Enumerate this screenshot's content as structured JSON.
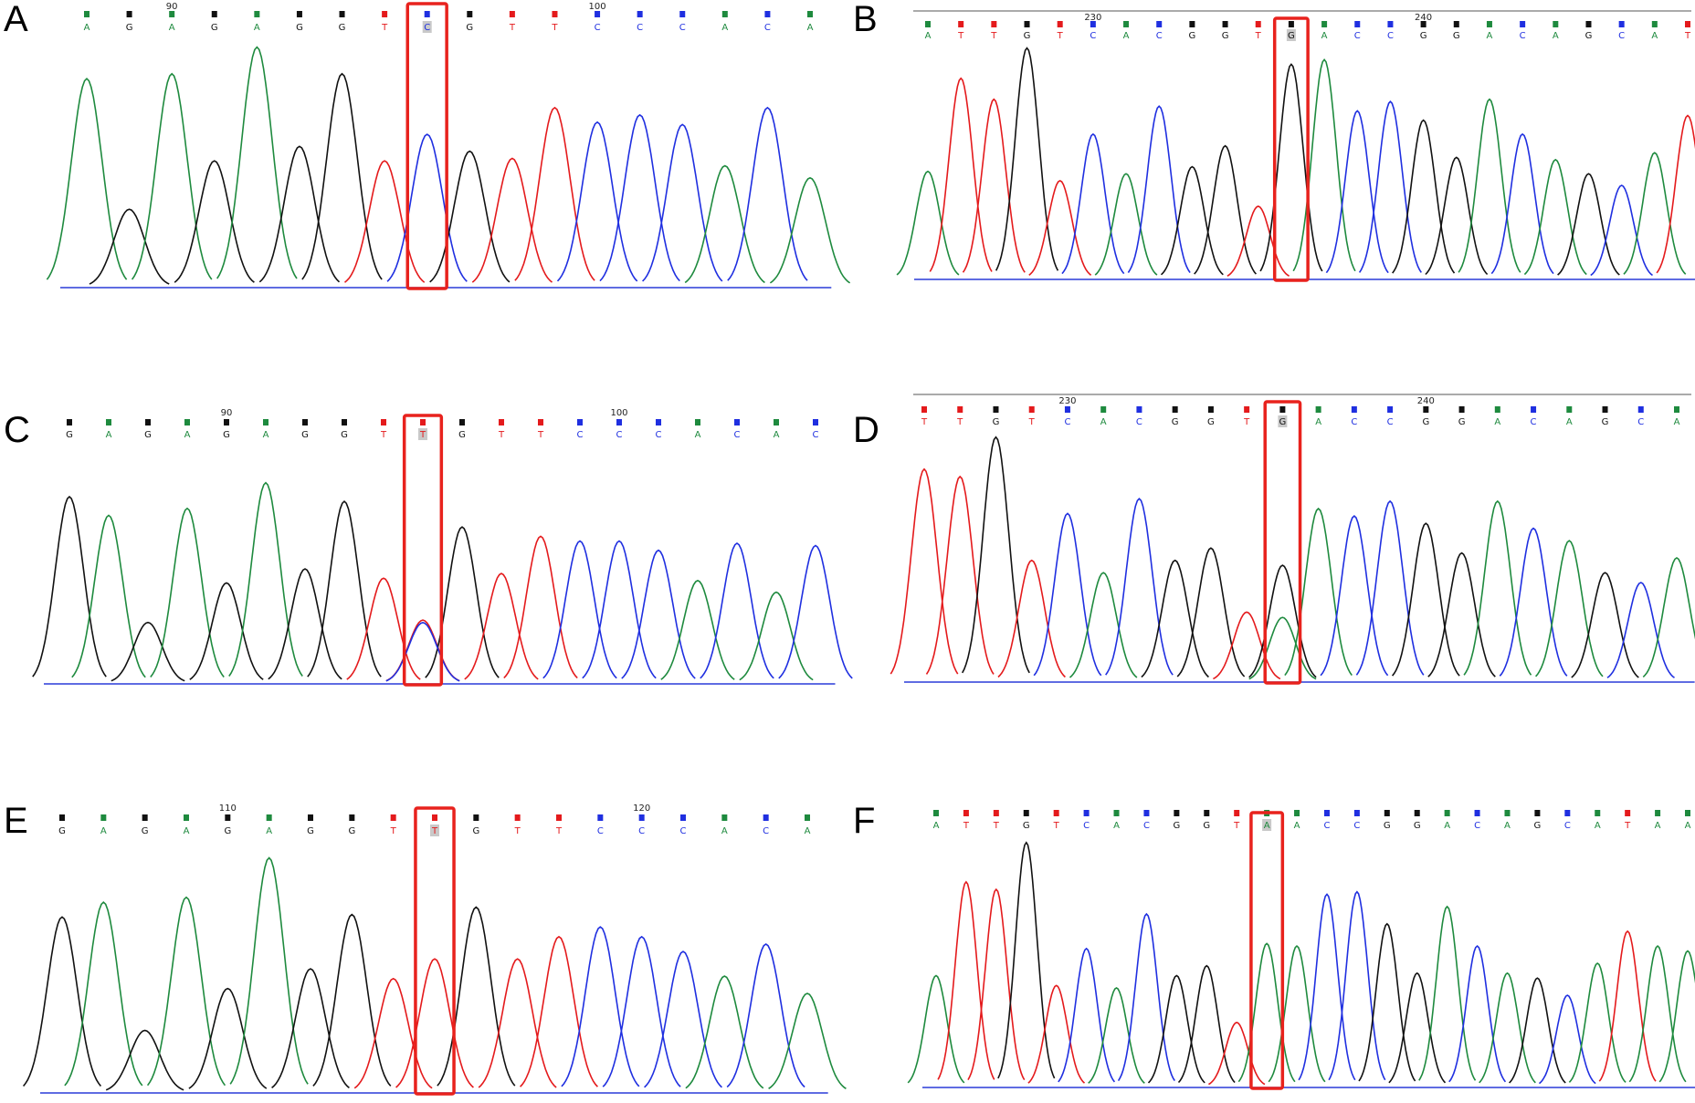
{
  "colors": {
    "A": "#1e8a3e",
    "C": "#1f2fe0",
    "G": "#111111",
    "T": "#e41a1c",
    "box": "#e8221d"
  },
  "panels": [
    {
      "letter": "A",
      "sequence": [
        "A",
        "G",
        "A",
        "G",
        "A",
        "G",
        "G",
        "T",
        "C",
        "G",
        "T",
        "T",
        "C",
        "C",
        "C",
        "A",
        "C",
        "A"
      ],
      "peaks": [
        0.86,
        0.32,
        0.88,
        0.52,
        0.99,
        0.58,
        0.88,
        0.52,
        0.63,
        0.56,
        0.53,
        0.74,
        0.68,
        0.71,
        0.67,
        0.5,
        0.74,
        0.45
      ],
      "position_labels": [
        {
          "text": "90",
          "index": 2
        },
        {
          "text": "100",
          "index": 12
        }
      ],
      "highlight_index": 8,
      "highlighted_base": "C",
      "top_rule": false
    },
    {
      "letter": "B",
      "sequence": [
        "A",
        "T",
        "T",
        "G",
        "T",
        "C",
        "A",
        "C",
        "G",
        "G",
        "T",
        "G",
        "A",
        "C",
        "C",
        "G",
        "G",
        "A",
        "C",
        "A",
        "G",
        "C",
        "A",
        "T"
      ],
      "peaks": [
        0.46,
        0.86,
        0.77,
        0.99,
        0.42,
        0.62,
        0.45,
        0.74,
        0.48,
        0.57,
        0.31,
        0.92,
        0.94,
        0.72,
        0.76,
        0.68,
        0.52,
        0.77,
        0.62,
        0.51,
        0.45,
        0.4,
        0.54,
        0.7
      ],
      "position_labels": [
        {
          "text": "230",
          "index": 5
        },
        {
          "text": "240",
          "index": 15
        }
      ],
      "highlight_index": 11,
      "highlighted_base": "G",
      "top_rule": true
    },
    {
      "letter": "C",
      "sequence": [
        "G",
        "A",
        "G",
        "A",
        "G",
        "A",
        "G",
        "G",
        "T",
        "T",
        "G",
        "T",
        "T",
        "C",
        "C",
        "C",
        "A",
        "C",
        "A",
        "C"
      ],
      "peaks": [
        0.8,
        0.72,
        0.26,
        0.75,
        0.43,
        0.86,
        0.49,
        0.78,
        0.45,
        0.27,
        0.67,
        0.47,
        0.63,
        0.61,
        0.61,
        0.57,
        0.44,
        0.6,
        0.39,
        0.59
      ],
      "position_labels": [
        {
          "text": "90",
          "index": 4
        },
        {
          "text": "100",
          "index": 14
        }
      ],
      "highlight_index": 9,
      "highlighted_base": "T",
      "top_rule": false
    },
    {
      "letter": "D",
      "sequence": [
        "T",
        "T",
        "G",
        "T",
        "C",
        "A",
        "C",
        "G",
        "G",
        "T",
        "G",
        "A",
        "C",
        "C",
        "G",
        "G",
        "A",
        "C",
        "A",
        "G",
        "C",
        "A"
      ],
      "peaks": [
        0.86,
        0.83,
        0.99,
        0.49,
        0.68,
        0.44,
        0.74,
        0.49,
        0.54,
        0.28,
        0.47,
        0.7,
        0.67,
        0.73,
        0.64,
        0.52,
        0.73,
        0.62,
        0.57,
        0.44,
        0.4,
        0.5
      ],
      "position_labels": [
        {
          "text": "230",
          "index": 4
        },
        {
          "text": "240",
          "index": 14
        }
      ],
      "highlight_index": 10,
      "highlighted_base": "G",
      "top_rule": true
    },
    {
      "letter": "E",
      "sequence": [
        "G",
        "A",
        "G",
        "A",
        "G",
        "A",
        "G",
        "G",
        "T",
        "T",
        "G",
        "T",
        "T",
        "C",
        "C",
        "C",
        "A",
        "C",
        "A"
      ],
      "peaks": [
        0.71,
        0.77,
        0.25,
        0.79,
        0.42,
        0.95,
        0.5,
        0.72,
        0.46,
        0.54,
        0.75,
        0.54,
        0.63,
        0.67,
        0.63,
        0.57,
        0.47,
        0.6,
        0.4
      ],
      "position_labels": [
        {
          "text": "110",
          "index": 4
        },
        {
          "text": "120",
          "index": 14
        }
      ],
      "highlight_index": 9,
      "highlighted_base": "T",
      "top_rule": false
    },
    {
      "letter": "F",
      "sequence": [
        "A",
        "T",
        "T",
        "G",
        "T",
        "C",
        "A",
        "C",
        "G",
        "G",
        "T",
        "A",
        "A",
        "C",
        "C",
        "G",
        "G",
        "A",
        "C",
        "A",
        "G",
        "C",
        "A",
        "T",
        "A",
        "A"
      ],
      "peaks": [
        0.45,
        0.83,
        0.8,
        0.99,
        0.41,
        0.56,
        0.4,
        0.7,
        0.45,
        0.49,
        0.26,
        0.58,
        0.57,
        0.78,
        0.79,
        0.66,
        0.46,
        0.73,
        0.57,
        0.46,
        0.44,
        0.37,
        0.5,
        0.63,
        0.57,
        0.55
      ],
      "position_labels": [],
      "highlight_index": 11,
      "highlighted_base": "A",
      "top_rule": false
    }
  ]
}
